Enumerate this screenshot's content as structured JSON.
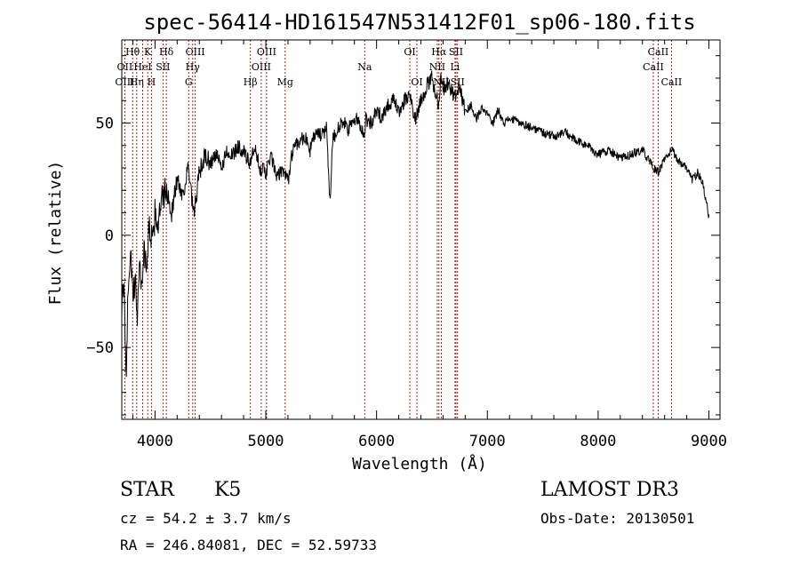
{
  "chart_data": {
    "type": "line",
    "title": "spec-56414-HD161547N531412F01_sp06-180.fits",
    "xlabel": "Wavelength (Å)",
    "ylabel": "Flux (relative)",
    "xlim": [
      3700,
      9100
    ],
    "ylim": [
      -82,
      87
    ],
    "x_ticks": [
      4000,
      5000,
      6000,
      7000,
      8000,
      9000
    ],
    "x_tick_labels": [
      "4000",
      "5000",
      "6000",
      "7000",
      "8000",
      "9000"
    ],
    "y_ticks": [
      -50,
      0,
      50
    ],
    "y_tick_labels": [
      "−50",
      "0",
      "50"
    ],
    "grid": false,
    "series": [
      {
        "x": [
          3700,
          3720,
          3740,
          3760,
          3780,
          3800,
          3820,
          3840,
          3860,
          3880,
          3900,
          3920,
          3950,
          3980,
          4000,
          4030,
          4060,
          4100,
          4150,
          4200,
          4250,
          4300,
          4350,
          4400,
          4450,
          4500,
          4550,
          4600,
          4650,
          4700,
          4750,
          4800,
          4850,
          4900,
          4950,
          5000,
          5050,
          5100,
          5150,
          5200,
          5250,
          5300,
          5350,
          5400,
          5450,
          5500,
          5550,
          5580,
          5600,
          5650,
          5700,
          5750,
          5800,
          5850,
          5890,
          5900,
          5950,
          6000,
          6050,
          6100,
          6150,
          6200,
          6250,
          6300,
          6350,
          6400,
          6450,
          6500,
          6540,
          6563,
          6580,
          6600,
          6650,
          6700,
          6750,
          6800,
          6850,
          6900,
          6950,
          7000,
          7050,
          7100,
          7150,
          7200,
          7300,
          7400,
          7500,
          7600,
          7700,
          7800,
          7900,
          8000,
          8100,
          8200,
          8300,
          8400,
          8498,
          8542,
          8600,
          8662,
          8700,
          8750,
          8800,
          8850,
          8900,
          8950,
          9000
        ],
        "y": [
          -30,
          -25,
          -60,
          -20,
          -5,
          -30,
          -20,
          -35,
          -10,
          -25,
          -5,
          -15,
          5,
          -5,
          10,
          5,
          15,
          20,
          10,
          25,
          18,
          30,
          8,
          28,
          35,
          32,
          36,
          30,
          38,
          35,
          40,
          37,
          32,
          38,
          30,
          28,
          35,
          25,
          30,
          24,
          40,
          42,
          44,
          38,
          46,
          44,
          48,
          13,
          42,
          48,
          50,
          47,
          52,
          50,
          44,
          52,
          50,
          55,
          53,
          58,
          60,
          55,
          60,
          62,
          52,
          60,
          66,
          70,
          62,
          58,
          72,
          65,
          68,
          62,
          66,
          55,
          58,
          52,
          56,
          54,
          50,
          56,
          50,
          52,
          50,
          48,
          46,
          44,
          46,
          42,
          40,
          36,
          38,
          34,
          36,
          38,
          30,
          28,
          34,
          38,
          35,
          32,
          30,
          25,
          28,
          22,
          8
        ]
      }
    ],
    "line_labels": [
      {
        "name": "Hθ",
        "wl": 3798,
        "row": 1
      },
      {
        "name": "OII",
        "wl": 3727,
        "row": 2
      },
      {
        "name": "OIII",
        "wl": 3727,
        "row": 3
      },
      {
        "name": "K",
        "wl": 3934,
        "row": 1
      },
      {
        "name": "HeI",
        "wl": 3889,
        "row": 2
      },
      {
        "name": "Hη",
        "wl": 3835,
        "row": 3
      },
      {
        "name": "Hδ",
        "wl": 4102,
        "row": 1
      },
      {
        "name": "SII",
        "wl": 4072,
        "row": 2
      },
      {
        "name": "H",
        "wl": 3968,
        "row": 3
      },
      {
        "name": "OIII",
        "wl": 4363,
        "row": 1
      },
      {
        "name": "Hγ",
        "wl": 4340,
        "row": 2
      },
      {
        "name": "G",
        "wl": 4304,
        "row": 3
      },
      {
        "name": "OIII",
        "wl": 5007,
        "row": 1
      },
      {
        "name": "OIII",
        "wl": 4959,
        "row": 2
      },
      {
        "name": "Hβ",
        "wl": 4861,
        "row": 3
      },
      {
        "name": "Mg",
        "wl": 5175,
        "row": 3
      },
      {
        "name": "Na",
        "wl": 5893,
        "row": 2
      },
      {
        "name": "OI",
        "wl": 6300,
        "row": 1
      },
      {
        "name": "OI",
        "wl": 6364,
        "row": 3
      },
      {
        "name": "Hα",
        "wl": 6563,
        "row": 1
      },
      {
        "name": "SII",
        "wl": 6717,
        "row": 1
      },
      {
        "name": "NII",
        "wl": 6548,
        "row": 2
      },
      {
        "name": "Li",
        "wl": 6708,
        "row": 2
      },
      {
        "name": "NII",
        "wl": 6584,
        "row": 3
      },
      {
        "name": "SII",
        "wl": 6731,
        "row": 3
      },
      {
        "name": "CaII",
        "wl": 8542,
        "row": 1
      },
      {
        "name": "CaII",
        "wl": 8498,
        "row": 2
      },
      {
        "name": "CaII",
        "wl": 8662,
        "row": 3
      }
    ],
    "line_marks": [
      3727,
      3798,
      3835,
      3889,
      3934,
      3968,
      4072,
      4102,
      4304,
      4340,
      4363,
      4861,
      4959,
      5007,
      5175,
      5893,
      6300,
      6364,
      6548,
      6563,
      6584,
      6708,
      6717,
      6731,
      8498,
      8542,
      8662
    ]
  },
  "info": {
    "object_class": "STAR",
    "subclass": "K5",
    "survey": "LAMOST DR3",
    "redshift": "cz = 54.2 ± 3.7 km/s",
    "obs_date": "Obs-Date: 20130501",
    "coords": "RA = 246.84081, DEC =  52.59733"
  },
  "colors": {
    "spectrum": "#000000",
    "line_marker": "#b00000",
    "axes": "#000000"
  }
}
